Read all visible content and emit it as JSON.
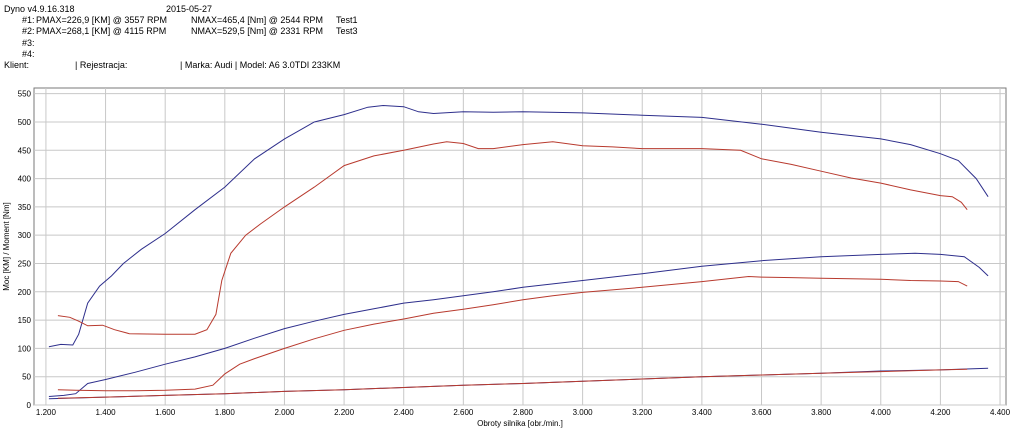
{
  "header": {
    "app_version": "Dyno v4.9.16.318",
    "date": "2015-05-27",
    "runs": [
      {
        "label": "#1:",
        "pmax": "PMAX=226,9 [KM] @ 3557 RPM",
        "nmax": "NMAX=465,4 [Nm] @ 2544 RPM",
        "name": "Test1"
      },
      {
        "label": "#2:",
        "pmax": "PMAX=268,1 [KM] @ 4115 RPM",
        "nmax": "NMAX=529,5 [Nm] @ 2331 RPM",
        "name": "Test3"
      },
      {
        "label": "#3:",
        "pmax": "",
        "nmax": "",
        "name": ""
      },
      {
        "label": "#4:",
        "pmax": "",
        "nmax": "",
        "name": ""
      }
    ],
    "client_label": "Klient:",
    "registration_label": "| Rejestracja:",
    "make_model": "| Marka: Audi | Model: A6 3.0TDI 233KM"
  },
  "chart_data": {
    "type": "line",
    "xlabel": "Obroty silnika [obr./min.]",
    "ylabel": "Moc [KM] / Moment [Nm]",
    "xlim": [
      1160,
      4420
    ],
    "ylim": [
      0,
      560
    ],
    "x_ticks": [
      1200,
      1400,
      1600,
      1800,
      2000,
      2200,
      2400,
      2600,
      2800,
      3000,
      3200,
      3400,
      3600,
      3800,
      4000,
      4200,
      4400
    ],
    "x_tick_labels": [
      "1.200",
      "1.400",
      "1.600",
      "1.800",
      "2.000",
      "2.200",
      "2.400",
      "2.600",
      "2.800",
      "3.000",
      "3.200",
      "3.400",
      "3.600",
      "3.800",
      "4.000",
      "4.200",
      "4.400"
    ],
    "y_ticks": [
      0,
      50,
      100,
      150,
      200,
      250,
      300,
      350,
      400,
      450,
      500,
      550
    ],
    "grid": true,
    "colors": {
      "run1": "#b83a2e",
      "run2": "#2e2f8c",
      "grid": "#c8c8c8"
    },
    "series": [
      {
        "run": "run2",
        "kind": "torque",
        "points": [
          [
            1210,
            103
          ],
          [
            1250,
            107
          ],
          [
            1290,
            106
          ],
          [
            1310,
            125
          ],
          [
            1340,
            180
          ],
          [
            1380,
            210
          ],
          [
            1420,
            228
          ],
          [
            1460,
            250
          ],
          [
            1520,
            275
          ],
          [
            1600,
            303
          ],
          [
            1700,
            345
          ],
          [
            1800,
            385
          ],
          [
            1900,
            435
          ],
          [
            2000,
            470
          ],
          [
            2100,
            500
          ],
          [
            2200,
            513
          ],
          [
            2280,
            526
          ],
          [
            2331,
            529
          ],
          [
            2400,
            527
          ],
          [
            2450,
            518
          ],
          [
            2500,
            515
          ],
          [
            2600,
            518
          ],
          [
            2700,
            517
          ],
          [
            2800,
            518
          ],
          [
            3000,
            516
          ],
          [
            3200,
            512
          ],
          [
            3400,
            508
          ],
          [
            3600,
            496
          ],
          [
            3800,
            482
          ],
          [
            4000,
            470
          ],
          [
            4100,
            460
          ],
          [
            4200,
            444
          ],
          [
            4260,
            432
          ],
          [
            4320,
            400
          ],
          [
            4360,
            368
          ]
        ]
      },
      {
        "run": "run1",
        "kind": "torque",
        "points": [
          [
            1240,
            158
          ],
          [
            1280,
            155
          ],
          [
            1310,
            148
          ],
          [
            1340,
            140
          ],
          [
            1390,
            141
          ],
          [
            1430,
            133
          ],
          [
            1480,
            126
          ],
          [
            1600,
            125
          ],
          [
            1700,
            125
          ],
          [
            1740,
            133
          ],
          [
            1770,
            160
          ],
          [
            1790,
            220
          ],
          [
            1820,
            268
          ],
          [
            1870,
            300
          ],
          [
            1920,
            320
          ],
          [
            2000,
            350
          ],
          [
            2100,
            385
          ],
          [
            2200,
            423
          ],
          [
            2300,
            440
          ],
          [
            2400,
            450
          ],
          [
            2500,
            461
          ],
          [
            2544,
            465
          ],
          [
            2600,
            462
          ],
          [
            2650,
            453
          ],
          [
            2700,
            453
          ],
          [
            2800,
            460
          ],
          [
            2900,
            465
          ],
          [
            3000,
            458
          ],
          [
            3100,
            456
          ],
          [
            3200,
            453
          ],
          [
            3300,
            453
          ],
          [
            3400,
            453
          ],
          [
            3530,
            450
          ],
          [
            3600,
            435
          ],
          [
            3700,
            425
          ],
          [
            3800,
            413
          ],
          [
            3900,
            401
          ],
          [
            4000,
            392
          ],
          [
            4100,
            380
          ],
          [
            4200,
            370
          ],
          [
            4240,
            368
          ],
          [
            4270,
            358
          ],
          [
            4290,
            345
          ]
        ]
      },
      {
        "run": "run2",
        "kind": "power",
        "points": [
          [
            1210,
            15
          ],
          [
            1260,
            17
          ],
          [
            1300,
            20
          ],
          [
            1340,
            38
          ],
          [
            1400,
            45
          ],
          [
            1500,
            58
          ],
          [
            1600,
            72
          ],
          [
            1700,
            85
          ],
          [
            1800,
            100
          ],
          [
            1900,
            118
          ],
          [
            2000,
            135
          ],
          [
            2100,
            148
          ],
          [
            2200,
            160
          ],
          [
            2300,
            170
          ],
          [
            2400,
            180
          ],
          [
            2500,
            186
          ],
          [
            2600,
            193
          ],
          [
            2700,
            200
          ],
          [
            2800,
            208
          ],
          [
            2900,
            214
          ],
          [
            3000,
            220
          ],
          [
            3200,
            232
          ],
          [
            3400,
            245
          ],
          [
            3600,
            255
          ],
          [
            3800,
            262
          ],
          [
            4000,
            266
          ],
          [
            4115,
            268
          ],
          [
            4200,
            266
          ],
          [
            4280,
            262
          ],
          [
            4330,
            243
          ],
          [
            4360,
            228
          ]
        ]
      },
      {
        "run": "run1",
        "kind": "power",
        "points": [
          [
            1240,
            27
          ],
          [
            1300,
            26
          ],
          [
            1400,
            25
          ],
          [
            1500,
            25
          ],
          [
            1600,
            26
          ],
          [
            1700,
            28
          ],
          [
            1760,
            35
          ],
          [
            1800,
            55
          ],
          [
            1850,
            72
          ],
          [
            1900,
            82
          ],
          [
            2000,
            100
          ],
          [
            2100,
            117
          ],
          [
            2200,
            132
          ],
          [
            2300,
            143
          ],
          [
            2400,
            152
          ],
          [
            2500,
            162
          ],
          [
            2600,
            169
          ],
          [
            2700,
            177
          ],
          [
            2800,
            186
          ],
          [
            2900,
            193
          ],
          [
            3000,
            199
          ],
          [
            3200,
            208
          ],
          [
            3400,
            218
          ],
          [
            3557,
            227
          ],
          [
            3600,
            226
          ],
          [
            3700,
            225
          ],
          [
            3800,
            224
          ],
          [
            3900,
            223
          ],
          [
            4000,
            222
          ],
          [
            4100,
            220
          ],
          [
            4200,
            219
          ],
          [
            4260,
            218
          ],
          [
            4290,
            210
          ]
        ]
      },
      {
        "run": "run2",
        "kind": "loss",
        "points": [
          [
            1210,
            11
          ],
          [
            1400,
            14
          ],
          [
            1600,
            17
          ],
          [
            1800,
            20
          ],
          [
            2000,
            24
          ],
          [
            2200,
            27
          ],
          [
            2400,
            31
          ],
          [
            2600,
            35
          ],
          [
            2800,
            38
          ],
          [
            3000,
            42
          ],
          [
            3200,
            46
          ],
          [
            3400,
            50
          ],
          [
            3600,
            53
          ],
          [
            3800,
            56
          ],
          [
            4000,
            60
          ],
          [
            4200,
            62
          ],
          [
            4360,
            65
          ]
        ]
      },
      {
        "run": "run1",
        "kind": "loss",
        "points": [
          [
            1240,
            12
          ],
          [
            1400,
            14
          ],
          [
            1600,
            17
          ],
          [
            1800,
            20
          ],
          [
            2000,
            24
          ],
          [
            2200,
            27
          ],
          [
            2400,
            31
          ],
          [
            2600,
            35
          ],
          [
            2800,
            38
          ],
          [
            3000,
            42
          ],
          [
            3200,
            46
          ],
          [
            3400,
            50
          ],
          [
            3600,
            53
          ],
          [
            3800,
            56
          ],
          [
            4000,
            59
          ],
          [
            4200,
            62
          ],
          [
            4290,
            63
          ]
        ]
      }
    ]
  }
}
